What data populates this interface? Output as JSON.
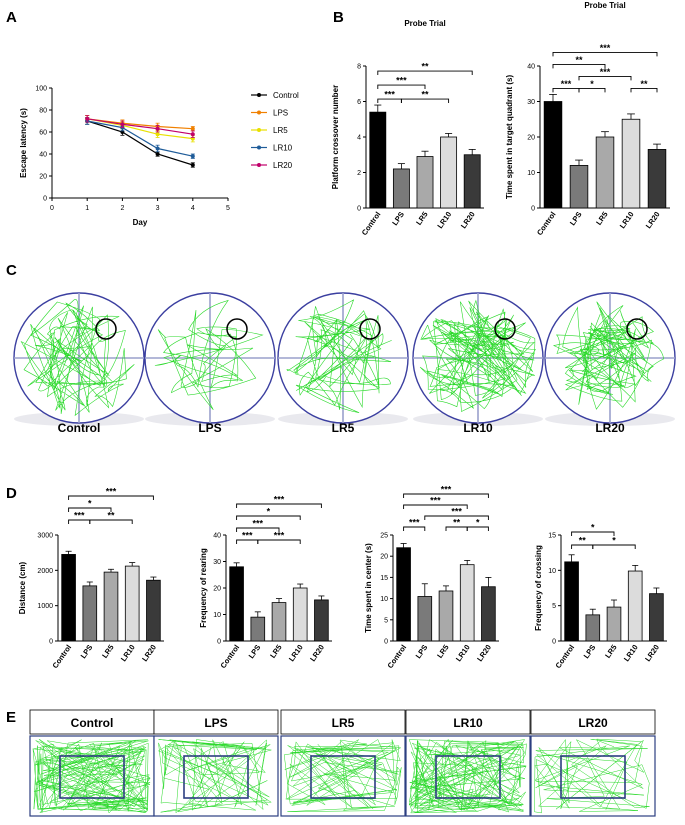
{
  "panels": {
    "a": "A",
    "b": "B",
    "c": "C",
    "d": "D",
    "e": "E"
  },
  "chart_data": [
    {
      "id": "A",
      "type": "line",
      "xlabel": "Day",
      "ylabel": "Escape latency (s)",
      "xlim": [
        0,
        5
      ],
      "ylim": [
        0,
        100
      ],
      "xticks": [
        0,
        1,
        2,
        3,
        4,
        5
      ],
      "yticks": [
        0,
        20,
        40,
        60,
        80,
        100
      ],
      "x": [
        1,
        2,
        3,
        4
      ],
      "series": [
        {
          "name": "Control",
          "color": "#000000",
          "marker": "circle",
          "values": [
            70,
            60,
            40,
            30
          ],
          "err": [
            3,
            3,
            2,
            2
          ]
        },
        {
          "name": "LPS",
          "color": "#f08000",
          "marker": "triangle",
          "values": [
            72,
            68,
            65,
            63
          ],
          "err": [
            3,
            3,
            3,
            2
          ]
        },
        {
          "name": "LR5",
          "color": "#e8e000",
          "marker": "diamond",
          "values": [
            72,
            66,
            58,
            54
          ],
          "err": [
            3,
            3,
            3,
            3
          ]
        },
        {
          "name": "LR10",
          "color": "#1f5c99",
          "marker": "square",
          "values": [
            70,
            64,
            45,
            38
          ],
          "err": [
            3,
            3,
            3,
            2
          ]
        },
        {
          "name": "LR20",
          "color": "#c0006a",
          "marker": "circle",
          "values": [
            72,
            67,
            63,
            58
          ],
          "err": [
            3,
            3,
            3,
            3
          ]
        }
      ]
    },
    {
      "id": "B1",
      "type": "bar",
      "title": "Probe Trial",
      "ylabel": "Platform crossover number",
      "ylim": [
        0,
        8
      ],
      "yticks": [
        0,
        2,
        4,
        6,
        8
      ],
      "categories": [
        "Control",
        "LPS",
        "LR5",
        "LR10",
        "LR20"
      ],
      "values": [
        5.4,
        2.2,
        2.9,
        4.0,
        3.0
      ],
      "err": [
        0.4,
        0.3,
        0.3,
        0.2,
        0.3
      ],
      "colors": [
        "#000000",
        "#7a7a7a",
        "#a9a9a9",
        "#dcdcdc",
        "#3a3a3a"
      ],
      "brackets": [
        {
          "from": 0,
          "to": 4,
          "label": "**"
        },
        {
          "from": 0,
          "to": 2,
          "label": "***"
        },
        {
          "from": 0,
          "to": 1,
          "label": "***"
        },
        {
          "from": 1,
          "to": 3,
          "label": "**"
        }
      ]
    },
    {
      "id": "B2",
      "type": "bar",
      "title": "Probe Trial",
      "ylabel": "Time spent in target quadrant (s)",
      "ylim": [
        0,
        40
      ],
      "yticks": [
        0,
        10,
        20,
        30,
        40
      ],
      "categories": [
        "Control",
        "LPS",
        "LR5",
        "LR10",
        "LR20"
      ],
      "values": [
        30,
        12,
        20,
        25,
        16.5
      ],
      "err": [
        2,
        1.5,
        1.5,
        1.5,
        1.5
      ],
      "colors": [
        "#000000",
        "#7a7a7a",
        "#a9a9a9",
        "#dcdcdc",
        "#3a3a3a"
      ],
      "brackets": [
        {
          "from": 0,
          "to": 4,
          "label": "***"
        },
        {
          "from": 1,
          "to": 3,
          "label": "***"
        },
        {
          "from": 0,
          "to": 2,
          "label": "**"
        },
        {
          "from": 0,
          "to": 1,
          "label": "***"
        },
        {
          "from": 1,
          "to": 2,
          "label": "*"
        },
        {
          "from": 3,
          "to": 4,
          "label": "**"
        }
      ]
    },
    {
      "id": "D1",
      "type": "bar",
      "ylabel": "Distance (cm)",
      "ylim": [
        0,
        3000
      ],
      "yticks": [
        0,
        1000,
        2000,
        3000
      ],
      "categories": [
        "Control",
        "LPS",
        "LR5",
        "LR10",
        "LR20"
      ],
      "values": [
        2450,
        1560,
        1950,
        2120,
        1720
      ],
      "err": [
        90,
        110,
        80,
        100,
        90
      ],
      "colors": [
        "#000000",
        "#7a7a7a",
        "#a9a9a9",
        "#dcdcdc",
        "#3a3a3a"
      ],
      "brackets": [
        {
          "from": 0,
          "to": 4,
          "label": "***"
        },
        {
          "from": 0,
          "to": 2,
          "label": "*"
        },
        {
          "from": 0,
          "to": 1,
          "label": "***"
        },
        {
          "from": 1,
          "to": 3,
          "label": "**"
        }
      ]
    },
    {
      "id": "D2",
      "type": "bar",
      "ylabel": "Frequency of rearing",
      "ylim": [
        0,
        40
      ],
      "yticks": [
        0,
        10,
        20,
        30,
        40
      ],
      "categories": [
        "Control",
        "LPS",
        "LR5",
        "LR10",
        "LR20"
      ],
      "values": [
        28,
        9,
        14.5,
        20,
        15.5
      ],
      "err": [
        1.5,
        2,
        1.5,
        1.5,
        1.5
      ],
      "colors": [
        "#000000",
        "#7a7a7a",
        "#a9a9a9",
        "#dcdcdc",
        "#3a3a3a"
      ],
      "brackets": [
        {
          "from": 0,
          "to": 4,
          "label": "***"
        },
        {
          "from": 0,
          "to": 3,
          "label": "*"
        },
        {
          "from": 0,
          "to": 2,
          "label": "***"
        },
        {
          "from": 0,
          "to": 1,
          "label": "***"
        },
        {
          "from": 1,
          "to": 3,
          "label": "***"
        }
      ]
    },
    {
      "id": "D3",
      "type": "bar",
      "ylabel": "Time spent in center (s)",
      "ylim": [
        0,
        25
      ],
      "yticks": [
        0,
        5,
        10,
        15,
        20,
        25
      ],
      "categories": [
        "Control",
        "LPS",
        "LR5",
        "LR10",
        "LR20"
      ],
      "values": [
        22,
        10.5,
        11.8,
        18,
        12.8
      ],
      "err": [
        1.0,
        3.0,
        1.2,
        1.0,
        2.2
      ],
      "colors": [
        "#000000",
        "#7a7a7a",
        "#a9a9a9",
        "#dcdcdc",
        "#3a3a3a"
      ],
      "brackets": [
        {
          "from": 0,
          "to": 4,
          "label": "***"
        },
        {
          "from": 1,
          "to": 4,
          "label": "***"
        },
        {
          "from": 0,
          "to": 3,
          "label": "***"
        },
        {
          "from": 0,
          "to": 1,
          "label": "***"
        },
        {
          "from": 2,
          "to": 3,
          "label": "**"
        },
        {
          "from": 3,
          "to": 4,
          "label": "*"
        }
      ]
    },
    {
      "id": "D4",
      "type": "bar",
      "ylabel": "Frequency of crossing",
      "ylim": [
        0,
        15
      ],
      "yticks": [
        0,
        5,
        10,
        15
      ],
      "categories": [
        "Control",
        "LPS",
        "LR5",
        "LR10",
        "LR20"
      ],
      "values": [
        11.2,
        3.7,
        4.8,
        9.9,
        6.7
      ],
      "err": [
        1.0,
        0.8,
        1.0,
        0.8,
        0.8
      ],
      "colors": [
        "#000000",
        "#7a7a7a",
        "#a9a9a9",
        "#dcdcdc",
        "#3a3a3a"
      ],
      "brackets": [
        {
          "from": 0,
          "to": 2,
          "label": "*"
        },
        {
          "from": 0,
          "to": 1,
          "label": "**"
        },
        {
          "from": 1,
          "to": 3,
          "label": "*"
        }
      ]
    }
  ],
  "probe_arenas": {
    "labels": [
      "Control",
      "LPS",
      "LR5",
      "LR10",
      "LR20"
    ]
  },
  "open_field": {
    "labels": [
      "Control",
      "LPS",
      "LR5",
      "LR10",
      "LR20"
    ]
  }
}
